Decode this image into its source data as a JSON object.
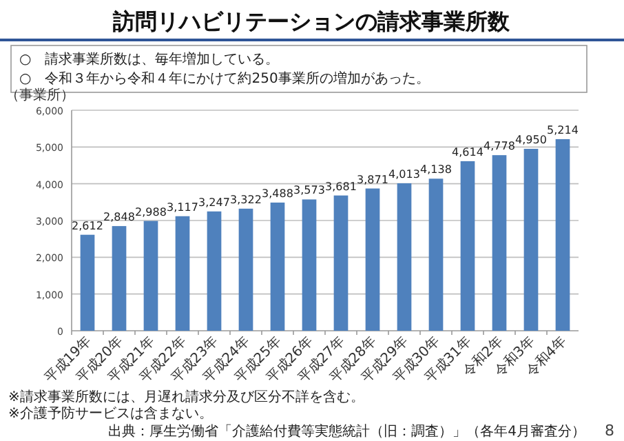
{
  "chart_data": {
    "type": "bar",
    "title": "訪問リハビリテーションの請求事業所数",
    "subtitle": "○　請求事業所数は、毎年増加している。\n○　令和３年から令和４年にかけて約250事業所の増加があった。",
    "ylabel": "（事業所）",
    "categories": [
      "平成19年",
      "平成20年",
      "平成21年",
      "平成22年",
      "平成23年",
      "平成24年",
      "平成25年",
      "平成26年",
      "平成27年",
      "平成28年",
      "平成29年",
      "平成30年",
      "平成31年",
      "令和2年",
      "令和3年",
      "令和4年"
    ],
    "values": [
      2612,
      2848,
      2988,
      3117,
      3247,
      3322,
      3488,
      3573,
      3681,
      3871,
      4013,
      4138,
      4614,
      4778,
      4950,
      5214
    ],
    "value_labels": [
      "2,612",
      "2,848",
      "2,988",
      "3,117",
      "3,247",
      "3,322",
      "3,488",
      "3,573",
      "3,681",
      "3,871",
      "4,013",
      "4,138",
      "4,614",
      "4,778",
      "4,950",
      "5,214"
    ],
    "color": "#4f81bd",
    "ylim": [
      0,
      6000
    ],
    "yticks": [
      0,
      {
        "value": 1000,
        "label": "1,000"
      },
      {
        "value": 2000,
        "label": "2,000"
      },
      {
        "value": 3000,
        "label": "3,000"
      },
      {
        "value": 4000,
        "label": "4,000"
      },
      {
        "value": 5000,
        "label": "5,000"
      },
      {
        "value": 6000,
        "label": "6,000"
      }
    ],
    "grid": "y",
    "annotations": [
      "※請求事業所数には、月遅れ請求分及び区分不詳を含む。",
      "※介護予防サービスは含まない。",
      "出典：厚生労働省「介護給付費等実態統計（旧：調査）」（各年4月審査分）",
      "8"
    ]
  }
}
